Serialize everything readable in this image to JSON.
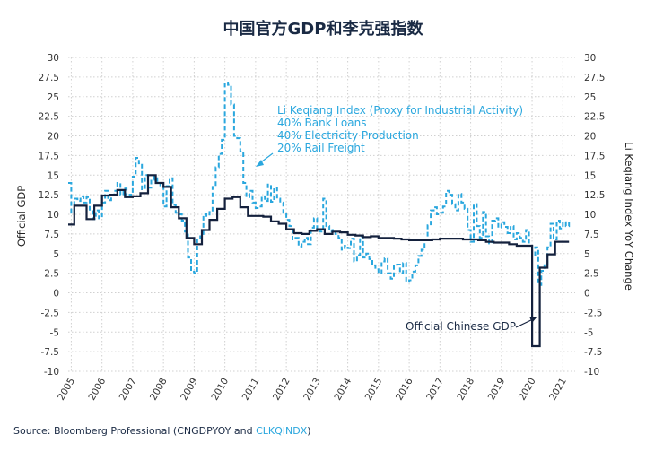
{
  "title": "中国官方GDP和李克强指数",
  "source": {
    "prefix": "Source: Bloomberg Professional (CNGDPYOY and ",
    "highlight": "CLKQINDX",
    "suffix": ")"
  },
  "colors": {
    "gdp": "#14213d",
    "li": "#2aa7de",
    "grid": "#d0d0d0"
  },
  "annotations": {
    "li_lines": [
      "Li Keqiang Index (Proxy for Industrial Activity)",
      "40% Bank Loans",
      "40% Electricity Production",
      "20% Rail Freight"
    ],
    "gdp_label": "Official Chinese GDP"
  },
  "chart_data": {
    "type": "line",
    "title": "中国官方GDP和李克强指数",
    "ylabel_left": "Official GDP",
    "ylabel_right": "Li Keqiang Index YoY Change",
    "xlabel": "",
    "ylim": [
      -10,
      30
    ],
    "xlim": [
      2004.9,
      2021.4
    ],
    "grid": true,
    "yticks": [
      "-10",
      "-7.5",
      "-5",
      "-2.5",
      "0",
      "2.5",
      "5",
      "7.5",
      "10",
      "12.5",
      "15",
      "17.5",
      "20",
      "22.5",
      "25",
      "27.5",
      "30"
    ],
    "xticks": [
      "2005",
      "2006",
      "2007",
      "2008",
      "2009",
      "2010",
      "2011",
      "2012",
      "2013",
      "2014",
      "2015",
      "2016",
      "2017",
      "2018",
      "2019",
      "2020",
      "2021"
    ],
    "series": [
      {
        "name": "Official Chinese GDP",
        "step": true,
        "x": [
          2004.9,
          2005.1,
          2005.25,
          2005.5,
          2005.75,
          2006.0,
          2006.25,
          2006.5,
          2006.75,
          2007.0,
          2007.25,
          2007.5,
          2007.75,
          2008.0,
          2008.25,
          2008.5,
          2008.75,
          2009.0,
          2009.25,
          2009.5,
          2009.75,
          2010.0,
          2010.25,
          2010.5,
          2010.75,
          2011.0,
          2011.25,
          2011.5,
          2011.75,
          2012.0,
          2012.25,
          2012.5,
          2012.75,
          2013.0,
          2013.25,
          2013.5,
          2013.75,
          2014.0,
          2014.25,
          2014.5,
          2014.75,
          2015.0,
          2015.25,
          2015.5,
          2015.75,
          2016.0,
          2016.25,
          2016.5,
          2016.75,
          2017.0,
          2017.25,
          2017.5,
          2017.75,
          2018.0,
          2018.25,
          2018.5,
          2018.75,
          2019.0,
          2019.25,
          2019.5,
          2019.75,
          2020.0,
          2020.25,
          2020.5,
          2020.75,
          2021.0,
          2021.2
        ],
        "values": [
          8.7,
          11.1,
          11.1,
          9.4,
          11.1,
          12.4,
          12.5,
          13.1,
          12.2,
          12.3,
          12.7,
          15.0,
          14.0,
          13.5,
          10.9,
          9.5,
          7.0,
          6.2,
          8.0,
          9.3,
          10.7,
          12.0,
          12.2,
          10.9,
          9.8,
          9.8,
          9.7,
          9.1,
          8.8,
          8.1,
          7.6,
          7.5,
          7.9,
          8.1,
          7.5,
          7.8,
          7.7,
          7.4,
          7.3,
          7.1,
          7.2,
          7.0,
          7.0,
          6.9,
          6.8,
          6.7,
          6.7,
          6.7,
          6.8,
          6.9,
          6.9,
          6.9,
          6.8,
          6.8,
          6.7,
          6.5,
          6.4,
          6.4,
          6.2,
          6.0,
          6.0,
          -6.8,
          3.2,
          4.9,
          6.5,
          6.5,
          6.5
        ]
      },
      {
        "name": "Li Keqiang Index (Proxy for Industrial Activity)",
        "step": true,
        "x": [
          2004.9,
          2005.0,
          2005.1,
          2005.2,
          2005.3,
          2005.4,
          2005.5,
          2005.6,
          2005.7,
          2005.8,
          2005.9,
          2006.0,
          2006.1,
          2006.2,
          2006.3,
          2006.4,
          2006.5,
          2006.6,
          2006.7,
          2006.8,
          2006.9,
          2007.0,
          2007.1,
          2007.2,
          2007.3,
          2007.4,
          2007.5,
          2007.6,
          2007.7,
          2007.8,
          2007.9,
          2008.0,
          2008.1,
          2008.2,
          2008.3,
          2008.4,
          2008.5,
          2008.6,
          2008.7,
          2008.8,
          2008.9,
          2009.0,
          2009.1,
          2009.2,
          2009.3,
          2009.4,
          2009.5,
          2009.6,
          2009.7,
          2009.8,
          2009.9,
          2010.0,
          2010.1,
          2010.2,
          2010.3,
          2010.4,
          2010.5,
          2010.6,
          2010.7,
          2010.8,
          2010.9,
          2011.0,
          2011.1,
          2011.2,
          2011.3,
          2011.4,
          2011.5,
          2011.6,
          2011.7,
          2011.8,
          2011.9,
          2012.0,
          2012.1,
          2012.2,
          2012.3,
          2012.4,
          2012.5,
          2012.6,
          2012.7,
          2012.8,
          2012.9,
          2013.0,
          2013.1,
          2013.2,
          2013.3,
          2013.4,
          2013.5,
          2013.6,
          2013.7,
          2013.8,
          2013.9,
          2014.0,
          2014.1,
          2014.2,
          2014.3,
          2014.4,
          2014.5,
          2014.6,
          2014.7,
          2014.8,
          2014.9,
          2015.0,
          2015.1,
          2015.2,
          2015.3,
          2015.4,
          2015.5,
          2015.6,
          2015.7,
          2015.8,
          2015.9,
          2016.0,
          2016.1,
          2016.2,
          2016.3,
          2016.4,
          2016.5,
          2016.6,
          2016.7,
          2016.8,
          2016.9,
          2017.0,
          2017.1,
          2017.2,
          2017.3,
          2017.4,
          2017.5,
          2017.6,
          2017.7,
          2017.8,
          2017.9,
          2018.0,
          2018.1,
          2018.2,
          2018.3,
          2018.4,
          2018.5,
          2018.6,
          2018.7,
          2018.8,
          2018.9,
          2019.0,
          2019.1,
          2019.2,
          2019.3,
          2019.4,
          2019.5,
          2019.6,
          2019.7,
          2019.8,
          2019.9,
          2020.0,
          2020.1,
          2020.2,
          2020.3,
          2020.4,
          2020.5,
          2020.6,
          2020.7,
          2020.8,
          2020.9,
          2021.0,
          2021.1,
          2021.2
        ],
        "values": [
          14.0,
          10.2,
          12.0,
          11.7,
          12.3,
          11.5,
          12.2,
          10.4,
          9.4,
          10.5,
          9.5,
          11.5,
          13.0,
          11.8,
          12.4,
          13.0,
          14.0,
          12.5,
          13.3,
          12.2,
          12.5,
          14.8,
          17.2,
          16.5,
          13.2,
          15.0,
          13.4,
          14.4,
          14.8,
          14.0,
          13.7,
          11.0,
          13.6,
          14.6,
          11.2,
          10.2,
          10.0,
          9.2,
          7.8,
          4.5,
          2.7,
          2.5,
          6.8,
          7.2,
          10.0,
          9.8,
          10.3,
          13.5,
          16.0,
          17.7,
          19.5,
          26.8,
          26.5,
          24.0,
          20.0,
          19.7,
          18.0,
          14.0,
          12.2,
          13.0,
          11.5,
          10.8,
          11.0,
          12.3,
          11.7,
          13.8,
          11.6,
          13.4,
          12.0,
          11.5,
          10.2,
          9.3,
          8.5,
          6.8,
          7.0,
          5.9,
          6.5,
          7.0,
          6.2,
          8.3,
          9.5,
          8.0,
          7.8,
          12.0,
          8.5,
          7.8,
          8.0,
          7.5,
          7.0,
          5.5,
          6.0,
          5.7,
          6.9,
          4.0,
          4.8,
          7.2,
          4.5,
          5.0,
          4.3,
          3.5,
          3.0,
          2.5,
          4.0,
          4.4,
          2.5,
          1.8,
          3.4,
          3.6,
          2.5,
          3.8,
          1.4,
          1.6,
          2.7,
          3.5,
          4.7,
          5.5,
          6.8,
          8.6,
          10.5,
          10.9,
          10.0,
          10.2,
          11.0,
          13.0,
          12.5,
          11.3,
          10.5,
          12.6,
          11.5,
          10.7,
          8.0,
          6.5,
          11.3,
          8.5,
          7.0,
          10.3,
          7.2,
          6.3,
          9.2,
          9.5,
          8.3,
          9.0,
          8.4,
          7.6,
          8.5,
          6.8,
          7.6,
          7.0,
          6.5,
          8.0,
          6.0,
          4.8,
          5.8,
          1.0,
          2.8,
          3.7,
          5.8,
          8.8,
          6.8,
          9.2,
          8.2,
          9.0,
          8.5,
          9.3
        ]
      }
    ]
  }
}
